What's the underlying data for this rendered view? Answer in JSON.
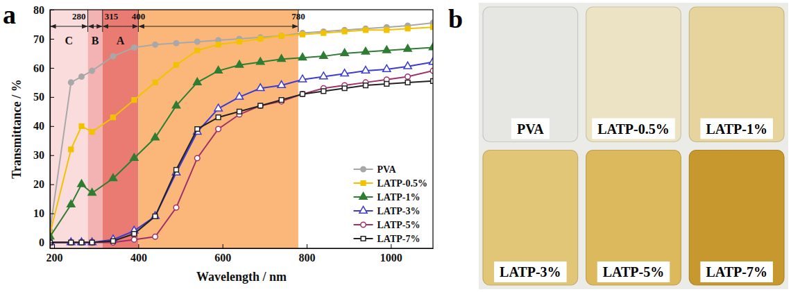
{
  "chart_data": {
    "type": "line",
    "title": "a",
    "x_label": "Wavelength / nm",
    "y_label": "Transmittance / %",
    "xlim": [
      190,
      1100
    ],
    "ylim": [
      -2,
      80
    ],
    "xticks": [
      200,
      400,
      600,
      800,
      1000
    ],
    "yticks": [
      0,
      10,
      20,
      30,
      40,
      50,
      60,
      70,
      80
    ],
    "grid": false,
    "legend": "lower right",
    "x": [
      190,
      240,
      265,
      290,
      340,
      390,
      440,
      490,
      540,
      590,
      640,
      690,
      740,
      790,
      840,
      890,
      940,
      990,
      1040,
      1100
    ],
    "series": [
      {
        "name": "PVA",
        "color": "#a8a8a8",
        "marker": "circle",
        "values": [
          4,
          55,
          57,
          59,
          64,
          67,
          68,
          68.5,
          69,
          69.5,
          70,
          70.5,
          71,
          72,
          72.5,
          73,
          73.5,
          74,
          74.5,
          75.5
        ]
      },
      {
        "name": "LATP-0.5%",
        "color": "#f2c200",
        "marker": "square",
        "values": [
          3,
          32,
          40,
          38,
          43,
          49,
          55,
          61,
          66,
          68,
          69,
          70,
          71,
          71.5,
          72,
          72.5,
          73,
          73,
          73.5,
          74
        ]
      },
      {
        "name": "LATP-1%",
        "color": "#2e7d32",
        "marker": "triangle",
        "values": [
          2,
          13,
          20,
          17,
          22,
          29,
          36,
          47,
          55,
          59,
          61,
          62,
          63,
          63.5,
          64,
          65,
          65.5,
          66,
          66.5,
          67
        ]
      },
      {
        "name": "LATP-3%",
        "color": "#3b3bd0",
        "marker": "triangle-open",
        "values": [
          0,
          0,
          0,
          0,
          1,
          4,
          9,
          24,
          38,
          46,
          50,
          53,
          54,
          56,
          57,
          58,
          59,
          59.5,
          60.5,
          62
        ]
      },
      {
        "name": "LATP-5%",
        "color": "#a0306a",
        "marker": "circle-open",
        "values": [
          0,
          0,
          0,
          0,
          0,
          1,
          2,
          12,
          29,
          39,
          44,
          47,
          48.5,
          51,
          53,
          54,
          55,
          56,
          57,
          59
        ]
      },
      {
        "name": "LATP-7%",
        "color": "#222222",
        "marker": "square-open",
        "values": [
          0,
          0,
          0,
          0,
          0.5,
          3,
          9,
          25,
          39,
          43,
          45,
          47,
          49,
          51,
          52,
          53,
          54,
          54.5,
          55,
          55.5
        ]
      }
    ],
    "bands": [
      {
        "from": 190,
        "to": 280,
        "label": "C",
        "color": "#fbdcdc"
      },
      {
        "from": 280,
        "to": 315,
        "label": "B",
        "color": "#f4b3b3"
      },
      {
        "from": 315,
        "to": 400,
        "label": "A",
        "color": "#ea7b73"
      },
      {
        "from": 400,
        "to": 780,
        "color": "#fbb77a"
      }
    ]
  },
  "photo": {
    "title": "b",
    "samples": [
      {
        "label": "PVA",
        "color": "#e6e6e2"
      },
      {
        "label": "LATP-0.5%",
        "color": "#ece3c4"
      },
      {
        "label": "LATP-1%",
        "color": "#e7d49c"
      },
      {
        "label": "LATP-3%",
        "color": "#e2c678"
      },
      {
        "label": "LATP-5%",
        "color": "#dcb95c"
      },
      {
        "label": "LATP-7%",
        "color": "#c6982e"
      }
    ]
  }
}
